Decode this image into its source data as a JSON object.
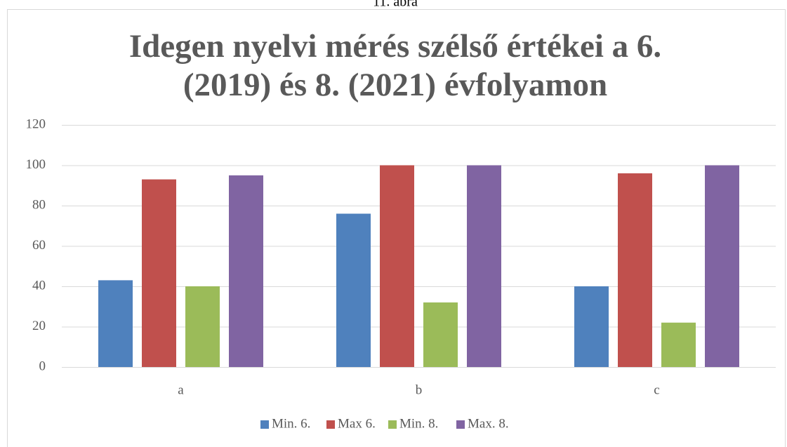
{
  "caption": "11. ábra",
  "chart_data": {
    "type": "bar",
    "title": [
      "Idegen nyelvi mérés szélső értékei a 6.",
      "(2019) és 8. (2021) évfolyamon"
    ],
    "categories": [
      "a",
      "b",
      "c"
    ],
    "series": [
      {
        "name": "Min. 6.",
        "color": "#4f81bd",
        "values": [
          43,
          76,
          40
        ]
      },
      {
        "name": "Max 6.",
        "color": "#c0504d",
        "values": [
          93,
          100,
          96
        ]
      },
      {
        "name": "Min. 8.",
        "color": "#9bbb59",
        "values": [
          40,
          32,
          22
        ]
      },
      {
        "name": "Max. 8.",
        "color": "#8064a2",
        "values": [
          95,
          100,
          100
        ]
      }
    ],
    "ylim": [
      0,
      120
    ],
    "yticks": [
      0,
      20,
      40,
      60,
      80,
      100,
      120
    ],
    "grid": true,
    "legend": "bottom"
  }
}
